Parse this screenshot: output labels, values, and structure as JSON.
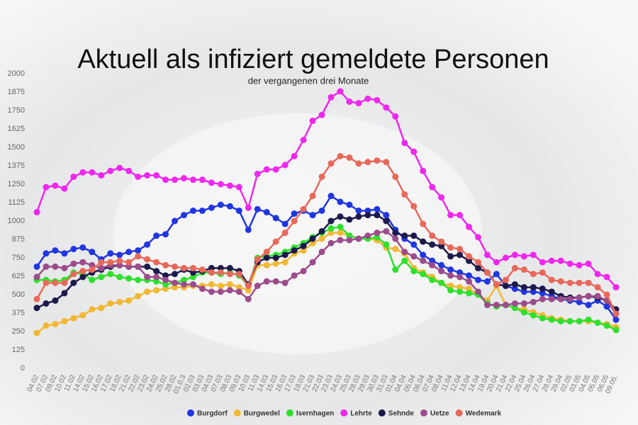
{
  "chart_data": {
    "type": "line",
    "title": "Aktuell als infiziert gemeldete Personen",
    "subtitle": "der vergangenen drei Monate",
    "categories": [
      "04.02",
      "07.02",
      "09.02",
      "10.02",
      "11.02",
      "14.02",
      "15.02",
      "16.02",
      "17.02",
      "18.02",
      "21.02",
      "22.02",
      "23.02",
      "24.02",
      "25.02",
      "28.02",
      "01.0.3",
      "02.03",
      "03.03",
      "04.03",
      "07.03",
      "08.03",
      "09.03",
      "10.03",
      "11.03",
      "14.03",
      "15.03",
      "16.03",
      "17.03",
      "18.03",
      "21.03",
      "22.03",
      "23.03",
      "24.03",
      "25.03",
      "28.03",
      "29.03",
      "30.03",
      "31.03",
      "01.04",
      "04.04",
      "05.04",
      "06.04",
      "07.04",
      "08.04",
      "11.04",
      "12.04",
      "13.04",
      "14.04",
      "19.04",
      "20.04",
      "21.04",
      "22.04",
      "25.04",
      "26.04",
      "27.04",
      "28.04",
      "29.04",
      "02.05",
      "03.05",
      "04.05",
      "05.05",
      "06.05",
      "09.05."
    ],
    "ylim": [
      0,
      2000
    ],
    "yticks": [
      0,
      125,
      250,
      375,
      500,
      625,
      750,
      875,
      1000,
      1125,
      1250,
      1375,
      1500,
      1625,
      1750,
      1875,
      2000
    ],
    "grid": false,
    "series": [
      {
        "name": "Burgdorf",
        "color": "#2036e0",
        "values": [
          690,
          780,
          800,
          780,
          810,
          820,
          790,
          740,
          780,
          770,
          790,
          800,
          840,
          900,
          910,
          1000,
          1040,
          1070,
          1070,
          1090,
          1110,
          1100,
          1070,
          940,
          1080,
          1060,
          1020,
          980,
          1050,
          1070,
          1040,
          1070,
          1170,
          1130,
          1110,
          1070,
          1070,
          1080,
          1040,
          940,
          880,
          840,
          770,
          730,
          700,
          670,
          650,
          630,
          600,
          590,
          640,
          560,
          540,
          520,
          520,
          510,
          490,
          470,
          460,
          450,
          430,
          460,
          420,
          330
        ]
      },
      {
        "name": "Burgwedel",
        "color": "#f2b833",
        "values": [
          240,
          290,
          300,
          320,
          340,
          360,
          400,
          410,
          440,
          450,
          460,
          490,
          520,
          530,
          540,
          550,
          550,
          560,
          560,
          570,
          560,
          570,
          550,
          530,
          700,
          700,
          710,
          720,
          780,
          800,
          850,
          880,
          920,
          920,
          900,
          880,
          880,
          870,
          820,
          810,
          780,
          680,
          650,
          620,
          580,
          560,
          550,
          540,
          500,
          460,
          560,
          430,
          410,
          400,
          380,
          360,
          340,
          330,
          320,
          320,
          320,
          310,
          300,
          280
        ]
      },
      {
        "name": "Isernhagen",
        "color": "#2ee02e",
        "values": [
          600,
          600,
          590,
          600,
          650,
          640,
          600,
          620,
          640,
          620,
          610,
          600,
          600,
          590,
          570,
          580,
          600,
          620,
          650,
          650,
          640,
          650,
          630,
          560,
          750,
          760,
          770,
          790,
          820,
          850,
          890,
          920,
          950,
          960,
          900,
          880,
          880,
          890,
          840,
          670,
          730,
          660,
          640,
          600,
          580,
          530,
          520,
          510,
          500,
          440,
          420,
          430,
          410,
          380,
          360,
          340,
          330,
          320,
          320,
          320,
          330,
          310,
          290,
          260
        ]
      },
      {
        "name": "Lehrte",
        "color": "#ee28ee",
        "values": [
          1060,
          1230,
          1240,
          1220,
          1300,
          1330,
          1330,
          1310,
          1340,
          1360,
          1340,
          1300,
          1310,
          1310,
          1280,
          1280,
          1290,
          1280,
          1280,
          1260,
          1250,
          1240,
          1230,
          1090,
          1320,
          1350,
          1350,
          1380,
          1440,
          1550,
          1680,
          1720,
          1840,
          1880,
          1810,
          1800,
          1830,
          1820,
          1770,
          1710,
          1530,
          1470,
          1340,
          1230,
          1160,
          1040,
          1040,
          960,
          890,
          770,
          720,
          750,
          770,
          760,
          770,
          720,
          730,
          730,
          710,
          700,
          710,
          640,
          620,
          550
        ]
      },
      {
        "name": "Sehnde",
        "color": "#1c1a4c",
        "values": [
          410,
          440,
          460,
          510,
          580,
          620,
          650,
          670,
          690,
          700,
          690,
          690,
          690,
          660,
          630,
          640,
          670,
          650,
          660,
          680,
          680,
          680,
          660,
          570,
          720,
          750,
          750,
          770,
          800,
          830,
          880,
          930,
          1000,
          1030,
          1010,
          1030,
          1040,
          1040,
          1000,
          920,
          900,
          900,
          860,
          840,
          830,
          760,
          770,
          730,
          680,
          650,
          570,
          560,
          570,
          550,
          550,
          540,
          520,
          490,
          480,
          480,
          490,
          480,
          460,
          400
        ]
      },
      {
        "name": "Uetze",
        "color": "#9c4c8c",
        "values": [
          620,
          690,
          690,
          680,
          710,
          720,
          700,
          680,
          700,
          700,
          690,
          690,
          620,
          620,
          600,
          580,
          570,
          570,
          540,
          520,
          520,
          530,
          520,
          470,
          560,
          590,
          590,
          580,
          630,
          660,
          720,
          790,
          850,
          870,
          870,
          880,
          900,
          920,
          930,
          880,
          790,
          760,
          730,
          700,
          660,
          630,
          620,
          590,
          520,
          430,
          430,
          430,
          440,
          440,
          450,
          470,
          470,
          470,
          470,
          480,
          490,
          490,
          460,
          370
        ]
      },
      {
        "name": "Wedemark",
        "color": "#e8685a",
        "values": [
          470,
          580,
          580,
          580,
          640,
          660,
          670,
          720,
          720,
          730,
          720,
          760,
          740,
          720,
          700,
          690,
          680,
          680,
          670,
          650,
          650,
          640,
          640,
          560,
          740,
          790,
          860,
          920,
          1000,
          1080,
          1170,
          1300,
          1390,
          1440,
          1430,
          1390,
          1400,
          1410,
          1400,
          1300,
          1180,
          1100,
          980,
          900,
          860,
          820,
          810,
          760,
          720,
          650,
          570,
          600,
          680,
          670,
          640,
          650,
          600,
          590,
          580,
          580,
          580,
          550,
          500,
          370
        ]
      }
    ]
  }
}
